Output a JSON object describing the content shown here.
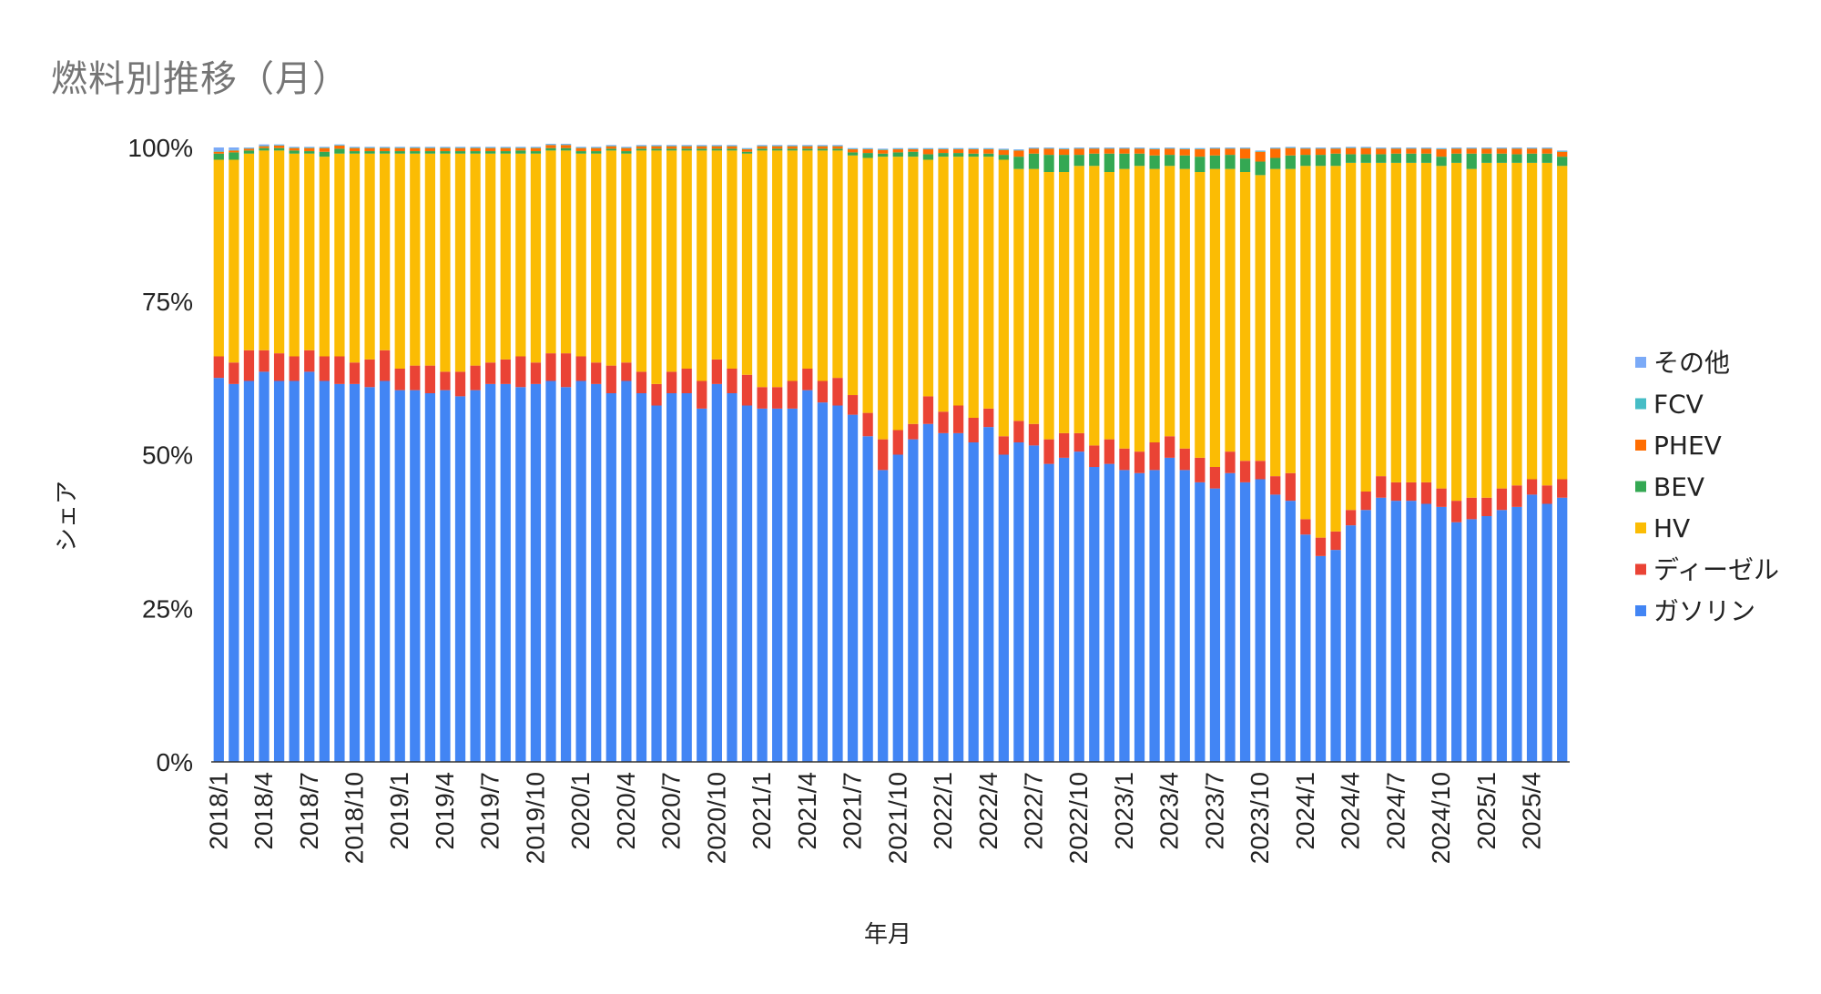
{
  "chart_data": {
    "type": "bar",
    "stacked": true,
    "percent": true,
    "title": "燃料別推移（月）",
    "xlabel": "年月",
    "ylabel": "シェア",
    "ylim": [
      0,
      100
    ],
    "yticks": [
      "0%",
      "25%",
      "50%",
      "75%",
      "100%"
    ],
    "grid": false,
    "legend_position": "right",
    "categories": [
      "2018/1",
      "2018/2",
      "2018/3",
      "2018/4",
      "2018/5",
      "2018/6",
      "2018/7",
      "2018/8",
      "2018/9",
      "2018/10",
      "2018/11",
      "2018/12",
      "2019/1",
      "2019/2",
      "2019/3",
      "2019/4",
      "2019/5",
      "2019/6",
      "2019/7",
      "2019/8",
      "2019/9",
      "2019/10",
      "2019/11",
      "2019/12",
      "2020/1",
      "2020/2",
      "2020/3",
      "2020/4",
      "2020/5",
      "2020/6",
      "2020/7",
      "2020/8",
      "2020/9",
      "2020/10",
      "2020/11",
      "2020/12",
      "2021/1",
      "2021/2",
      "2021/3",
      "2021/4",
      "2021/5",
      "2021/6",
      "2021/7",
      "2021/8",
      "2021/9",
      "2021/10",
      "2021/11",
      "2021/12",
      "2022/1",
      "2022/2",
      "2022/3",
      "2022/4",
      "2022/5",
      "2022/6",
      "2022/7",
      "2022/8",
      "2022/9",
      "2022/10",
      "2022/11",
      "2022/12",
      "2023/1",
      "2023/2",
      "2023/3",
      "2023/4",
      "2023/5",
      "2023/6",
      "2023/7",
      "2023/8",
      "2023/9",
      "2023/10",
      "2023/11",
      "2023/12",
      "2024/1",
      "2024/2",
      "2024/3",
      "2024/4",
      "2024/5",
      "2024/6",
      "2024/7",
      "2024/8",
      "2024/9",
      "2024/10",
      "2024/11",
      "2024/12",
      "2025/1",
      "2025/2",
      "2025/3",
      "2025/4",
      "2025/5",
      "2025/6"
    ],
    "xtick_labels": [
      "2018/1",
      "",
      "",
      "2018/4",
      "",
      "",
      "2018/7",
      "",
      "",
      "2018/10",
      "",
      "",
      "2019/1",
      "",
      "",
      "2019/4",
      "",
      "",
      "2019/7",
      "",
      "",
      "2019/10",
      "",
      "",
      "2020/1",
      "",
      "",
      "2020/4",
      "",
      "",
      "2020/7",
      "",
      "",
      "2020/10",
      "",
      "",
      "2021/1",
      "",
      "",
      "2021/4",
      "",
      "",
      "2021/7",
      "",
      "",
      "2021/10",
      "",
      "",
      "2022/1",
      "",
      "",
      "2022/4",
      "",
      "",
      "2022/7",
      "",
      "",
      "2022/10",
      "",
      "",
      "2023/1",
      "",
      "",
      "2023/4",
      "",
      "",
      "2023/7",
      "",
      "",
      "2023/10",
      "",
      "",
      "2024/1",
      "",
      "",
      "2024/4",
      "",
      "",
      "2024/7",
      "",
      "",
      "2024/10",
      "",
      "",
      "2025/1",
      "",
      "",
      "2025/4",
      "",
      ""
    ],
    "series": [
      {
        "name": "ガソリン",
        "color": "#4285f4",
        "values": [
          62.5,
          61.5,
          62,
          63.5,
          62,
          62,
          63.5,
          62,
          61.5,
          61.5,
          61,
          62,
          60.5,
          60.5,
          60,
          60.5,
          59.5,
          60.5,
          61.5,
          61.5,
          61,
          61.5,
          62,
          61,
          62,
          61.5,
          60,
          62,
          60,
          58,
          60,
          60,
          57.5,
          61.5,
          60,
          58,
          57.5,
          57.5,
          57.5,
          60.5,
          58.5,
          58,
          56.5,
          53,
          47.5,
          50,
          52.5,
          55,
          53.5,
          53.5,
          52,
          54.5,
          50,
          52,
          51.5,
          48.5,
          49.5,
          50.5,
          48,
          48.5,
          47.5,
          47,
          47.5,
          49.5,
          47.5,
          45.5,
          44.5,
          47,
          45.5,
          46,
          43.5,
          42.5,
          37,
          33.5,
          34.5,
          38.5,
          41,
          43,
          42.5,
          42.5,
          42,
          41.5,
          39,
          39.5,
          40,
          41,
          41.5,
          43.5,
          42,
          43
        ]
      },
      {
        "name": "ディーゼル",
        "color": "#ea4335",
        "values": [
          3.5,
          3.5,
          5,
          3.5,
          4.5,
          4,
          3.5,
          4,
          4.5,
          3.5,
          4.5,
          5,
          3.5,
          4,
          4.5,
          3,
          4,
          4,
          3.5,
          4,
          5,
          3.5,
          4.5,
          5.5,
          4,
          3.5,
          4.5,
          3,
          3.5,
          3.5,
          3.5,
          4,
          4.5,
          4,
          4,
          5,
          3.5,
          3.5,
          4.5,
          3.5,
          3.5,
          4.5,
          3.2,
          3.8,
          5,
          4,
          2.5,
          4.5,
          3.5,
          4.5,
          4,
          3,
          3,
          3.5,
          3.5,
          4,
          4,
          3,
          3.5,
          4,
          3.5,
          3.5,
          4.5,
          3.5,
          3.5,
          4,
          3.5,
          3.5,
          3.5,
          3,
          3,
          4.5,
          2.5,
          3,
          3,
          2.5,
          3,
          3.5,
          3,
          3,
          3.5,
          3,
          3.5,
          3.5,
          3,
          3.5,
          3.5,
          2.5,
          3,
          3
        ]
      },
      {
        "name": "HV",
        "color": "#fbbc04",
        "values": [
          32,
          33,
          32,
          32.5,
          33,
          33,
          32,
          32.5,
          33,
          34,
          33.5,
          32,
          35,
          34.5,
          34.5,
          35.5,
          35.5,
          34.5,
          34,
          33.5,
          33,
          34,
          33,
          33,
          33,
          34,
          35,
          34,
          36,
          38,
          36,
          35.5,
          37.5,
          34,
          35.5,
          36,
          38.5,
          38.5,
          37.5,
          35.5,
          37.5,
          37,
          39,
          41.5,
          46,
          44.5,
          43.5,
          38.5,
          41.5,
          40.5,
          42.5,
          41,
          45,
          41,
          41.5,
          43.5,
          42.5,
          43.5,
          45.5,
          43.5,
          45.5,
          46.5,
          44.5,
          44,
          45.5,
          46.5,
          48.5,
          46,
          47,
          46.5,
          50,
          49.5,
          57.5,
          60.5,
          59.5,
          56.5,
          53.5,
          51,
          52,
          52,
          52,
          52.5,
          55,
          53.5,
          54.5,
          53,
          52.5,
          51.5,
          52.5,
          51
        ]
      },
      {
        "name": "BEV",
        "color": "#34a853",
        "values": [
          1,
          1.2,
          0.5,
          0.4,
          0.4,
          0.5,
          0.4,
          0.8,
          0.8,
          0.4,
          0.4,
          0.4,
          0.4,
          0.4,
          0.4,
          0.4,
          0.4,
          0.4,
          0.4,
          0.4,
          0.5,
          0.4,
          0.4,
          0.4,
          0.4,
          0.4,
          0.3,
          0.4,
          0.3,
          0.3,
          0.3,
          0.3,
          0.3,
          0.3,
          0.3,
          0.3,
          0.3,
          0.3,
          0.3,
          0.3,
          0.3,
          0.3,
          0.5,
          0.8,
          0.5,
          0.7,
          0.8,
          0.9,
          0.6,
          0.6,
          0.5,
          0.5,
          0.8,
          2,
          2.5,
          2.8,
          2.8,
          1.8,
          2,
          3,
          2.5,
          2,
          2.2,
          1.8,
          2.2,
          2.5,
          2.2,
          2.3,
          2.2,
          2.2,
          1.8,
          2.2,
          1.8,
          1.8,
          2,
          1.4,
          1.4,
          1.4,
          1.5,
          1.5,
          1.5,
          1.5,
          1.5,
          2.5,
          1.5,
          1.5,
          1.4,
          1.5,
          1.5,
          1.5
        ]
      },
      {
        "name": "PHEV",
        "color": "#ff6d01",
        "values": [
          0.3,
          0.3,
          0.3,
          0.3,
          0.4,
          0.4,
          0.5,
          0.6,
          0.5,
          0.5,
          0.5,
          0.5,
          0.5,
          0.5,
          0.5,
          0.5,
          0.5,
          0.5,
          0.5,
          0.5,
          0.4,
          0.5,
          0.5,
          0.5,
          0.5,
          0.5,
          0.4,
          0.5,
          0.4,
          0.4,
          0.4,
          0.4,
          0.4,
          0.4,
          0.4,
          0.4,
          0.4,
          0.4,
          0.4,
          0.4,
          0.4,
          0.4,
          0.5,
          0.6,
          0.6,
          0.5,
          0.4,
          0.8,
          0.6,
          0.6,
          0.7,
          0.7,
          0.8,
          1,
          0.8,
          1,
          0.9,
          1,
          0.8,
          0.8,
          0.8,
          0.8,
          1,
          1,
          1,
          1.2,
          1.1,
          1,
          1.6,
          1.6,
          1.5,
          1.2,
          1,
          1,
          0.8,
          1,
          1,
          0.9,
          0.8,
          0.8,
          0.8,
          1.2,
          0.8,
          0.8,
          0.8,
          0.8,
          0.9,
          0.8,
          0.8,
          0.8
        ]
      },
      {
        "name": "FCV",
        "color": "#46bdc6",
        "values": [
          0.1,
          0.1,
          0.1,
          0.1,
          0.1,
          0.1,
          0.1,
          0.1,
          0.1,
          0.1,
          0.1,
          0.1,
          0.1,
          0.1,
          0.1,
          0.1,
          0.1,
          0.1,
          0.1,
          0.1,
          0.1,
          0.1,
          0.1,
          0.1,
          0.1,
          0.1,
          0.1,
          0.1,
          0.1,
          0.1,
          0.1,
          0.1,
          0.1,
          0.1,
          0.1,
          0.1,
          0.1,
          0.1,
          0.1,
          0.1,
          0.1,
          0.1,
          0.1,
          0.1,
          0.1,
          0.1,
          0.1,
          0.1,
          0.1,
          0.1,
          0.1,
          0.1,
          0.1,
          0.1,
          0.1,
          0.1,
          0.1,
          0.1,
          0.1,
          0.1,
          0.1,
          0.1,
          0.1,
          0.1,
          0.1,
          0.1,
          0.1,
          0.1,
          0.1,
          0.1,
          0.1,
          0.1,
          0.1,
          0.1,
          0.1,
          0.1,
          0.1,
          0.1,
          0.1,
          0.1,
          0.1,
          0.1,
          0.1,
          0.1,
          0.1,
          0.1,
          0.1,
          0.1,
          0.1,
          0.1
        ]
      },
      {
        "name": "その他",
        "color": "#7baaf7",
        "values": [
          0.6,
          0.4,
          0.1,
          0.2,
          0.1,
          0.1,
          0.1,
          0.1,
          0.1,
          0.1,
          0.1,
          0.1,
          0.1,
          0.1,
          0.1,
          0.1,
          0.1,
          0.1,
          0.1,
          0.1,
          0.1,
          0.1,
          0.1,
          0.1,
          0.1,
          0.1,
          0.1,
          0.1,
          0.1,
          0.1,
          0.1,
          0.1,
          0.1,
          0.1,
          0.1,
          0.1,
          0.1,
          0.1,
          0.1,
          0.1,
          0.1,
          0.1,
          0.1,
          0.1,
          0.1,
          0.1,
          0.1,
          0.1,
          0.1,
          0.1,
          0.1,
          0.1,
          0.1,
          0.1,
          0.1,
          0.1,
          0.1,
          0.1,
          0.1,
          0.1,
          0.1,
          0.1,
          0.1,
          0.1,
          0.1,
          0.1,
          0.1,
          0.1,
          0.1,
          0.1,
          0.1,
          0.1,
          0.1,
          0.1,
          0.1,
          0.1,
          0.1,
          0.1,
          0.1,
          0.1,
          0.1,
          0.1,
          0.1,
          0.1,
          0.1,
          0.1,
          0.1,
          0.1,
          0.1,
          0.1
        ]
      }
    ]
  }
}
